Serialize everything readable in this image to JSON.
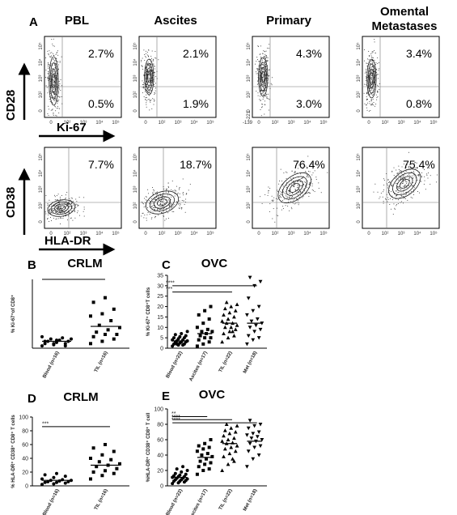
{
  "panel_a": {
    "letter": "A",
    "columns": [
      "PBL",
      "Ascites",
      "Primary",
      "Omental Metastases"
    ],
    "flow_ticks": [
      "0",
      "10²",
      "10³",
      "10⁴",
      "10⁵"
    ],
    "extra_ticks": {
      "y": "-221",
      "x": "-139"
    },
    "rows": [
      {
        "y_label": "CD28",
        "x_label": "Ki-67",
        "percents": [
          [
            "2.7%",
            "0.5%"
          ],
          [
            "2.1%",
            "1.9%"
          ],
          [
            "4.3%",
            "3.0%"
          ],
          [
            "3.4%",
            "0.8%"
          ]
        ]
      },
      {
        "y_label": "CD38",
        "x_label": "HLA-DR",
        "percents": [
          [
            "7.7%"
          ],
          [
            "18.7%"
          ],
          [
            "76.4%"
          ],
          [
            "75.4%"
          ]
        ]
      }
    ]
  },
  "chart_data": [
    {
      "type": "dot",
      "letter": "B",
      "title": "CRLM",
      "y_label": "% Ki-67⁺of CD8⁺",
      "categories": [
        "Blood (n=16)",
        "TIL (n=16)"
      ],
      "ylim": [
        0,
        30
      ],
      "values": [
        [
          1,
          1.5,
          2,
          2,
          2.5,
          3,
          3,
          3.5,
          4,
          4,
          4.5,
          5,
          2,
          1,
          3,
          3.5
        ],
        [
          2,
          3,
          4,
          5,
          6,
          6,
          7,
          8,
          9,
          10,
          12,
          14,
          15,
          17,
          20,
          22
        ]
      ],
      "means": [
        3,
        9.5
      ],
      "significance": []
    },
    {
      "type": "dot",
      "letter": "C",
      "title": "OVC",
      "y_label": "% Ki-67⁺ CD8⁺T cells",
      "categories": [
        "Blood (n=22)",
        "Ascites (n=17)",
        "TIL (n=22)",
        "Met (n=18)"
      ],
      "ylim": [
        0,
        35
      ],
      "yticks": [
        0,
        5,
        10,
        15,
        20,
        25,
        30,
        35
      ],
      "values": [
        [
          1,
          1.5,
          2,
          2,
          2.5,
          3,
          3,
          3,
          3.5,
          3.5,
          4,
          4,
          4.5,
          5,
          5,
          5.5,
          6,
          6.5,
          7,
          8,
          2,
          1.5
        ],
        [
          1,
          2,
          3,
          4,
          5,
          5,
          6,
          7,
          8,
          8,
          9,
          10,
          12,
          14,
          16,
          18,
          20
        ],
        [
          3,
          5,
          6,
          7,
          8,
          9,
          10,
          10,
          11,
          12,
          12,
          13,
          14,
          15,
          16,
          17,
          18,
          19,
          20,
          21,
          22,
          8
        ],
        [
          2,
          4,
          5,
          6,
          8,
          9,
          10,
          11,
          12,
          13,
          14,
          16,
          18,
          20,
          24,
          30,
          32,
          34
        ]
      ],
      "means": [
        3.5,
        7,
        12,
        12
      ],
      "significance": [
        "****",
        "***"
      ]
    },
    {
      "type": "dot",
      "letter": "D",
      "title": "CRLM",
      "y_label": "% HLA-DR⁺ CD38⁺ CD8⁺ T cells",
      "categories": [
        "Blood (n=16)",
        "TIL (n=16)"
      ],
      "ylim": [
        0,
        100
      ],
      "yticks": [
        0,
        20,
        40,
        60,
        80,
        100
      ],
      "values": [
        [
          2,
          3,
          4,
          5,
          5,
          6,
          6,
          7,
          8,
          8,
          9,
          10,
          12,
          14,
          16,
          18
        ],
        [
          10,
          15,
          18,
          20,
          22,
          25,
          28,
          30,
          32,
          35,
          38,
          40,
          45,
          50,
          55,
          60
        ]
      ],
      "means": [
        8,
        30
      ],
      "significance": [
        "***"
      ]
    },
    {
      "type": "dot",
      "letter": "E",
      "title": "OVC",
      "y_label": "%HLA-DR⁺ CD38⁺ CD8⁺ T cell",
      "categories": [
        "Blood (n=22)",
        "Ascites (n=17)",
        "TIL (n=22)",
        "Met (n=18)"
      ],
      "ylim": [
        0,
        100
      ],
      "yticks": [
        0,
        20,
        40,
        60,
        80,
        100
      ],
      "values": [
        [
          3,
          4,
          5,
          6,
          6,
          7,
          8,
          8,
          9,
          10,
          10,
          11,
          12,
          12,
          13,
          14,
          15,
          16,
          18,
          20,
          22,
          25
        ],
        [
          15,
          20,
          22,
          25,
          28,
          30,
          32,
          35,
          38,
          40,
          42,
          45,
          48,
          50,
          52,
          55,
          60
        ],
        [
          20,
          28,
          32,
          38,
          42,
          45,
          48,
          50,
          52,
          55,
          56,
          58,
          60,
          62,
          65,
          68,
          70,
          72,
          75,
          78,
          80,
          35
        ],
        [
          25,
          35,
          40,
          45,
          50,
          52,
          55,
          58,
          60,
          62,
          64,
          66,
          68,
          70,
          75,
          78,
          80,
          85
        ]
      ],
      "means": [
        11,
        37,
        55,
        58
      ],
      "significance": [
        "**",
        "****",
        "****"
      ]
    }
  ]
}
